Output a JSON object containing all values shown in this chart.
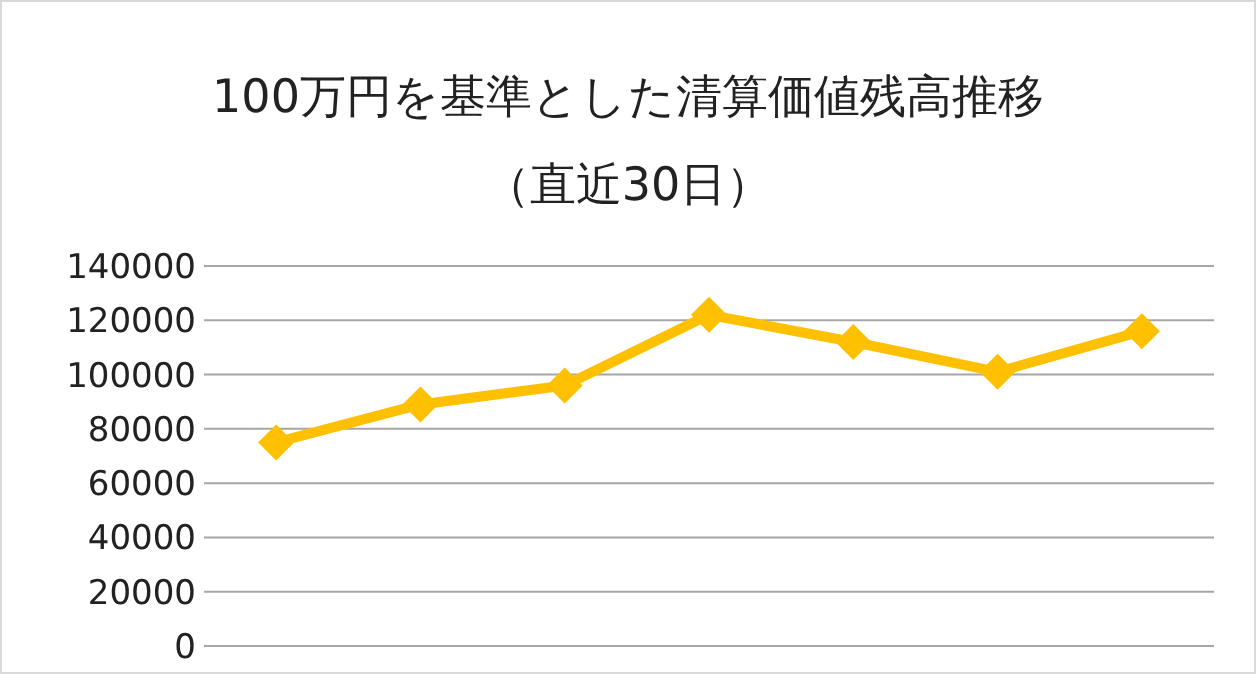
{
  "chart_data": {
    "type": "line",
    "title": "100万円を基準とした清算価値残高推移",
    "subtitle": "（直近30日）",
    "categories": [
      null,
      null,
      null,
      null,
      null,
      null,
      null
    ],
    "series": [
      {
        "color": "#ffc000",
        "values": [
          75000,
          89000,
          96000,
          122000,
          112000,
          101000,
          116000
        ]
      }
    ],
    "ylim": [
      0,
      140000
    ],
    "yticks": [
      0,
      20000,
      40000,
      60000,
      80000,
      100000,
      120000,
      140000
    ],
    "grid": "y",
    "marker": "diamond",
    "line_style": "solid"
  }
}
